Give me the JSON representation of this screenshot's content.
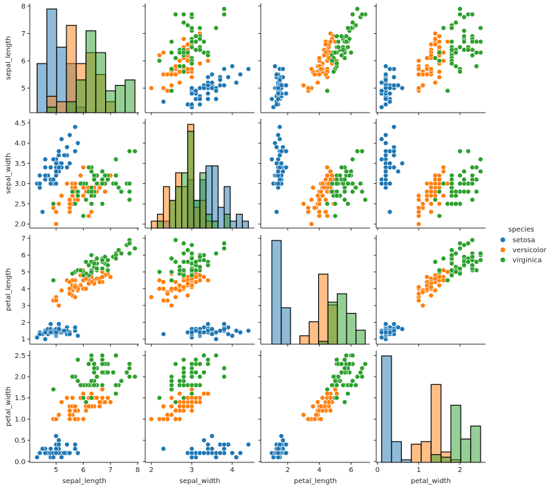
{
  "chart_data": {
    "type": "scatter",
    "title": "",
    "kind": "pairplot",
    "variables": [
      "sepal_length",
      "sepal_width",
      "petal_length",
      "petal_width"
    ],
    "hue": "species",
    "legend": {
      "title": "species",
      "position": "right",
      "entries": [
        {
          "label": "setosa",
          "color": "#1f77b4"
        },
        {
          "label": "versicolor",
          "color": "#ff7f0e"
        },
        {
          "label": "virginica",
          "color": "#2ca02c"
        }
      ]
    },
    "diag_kind": "hist",
    "axes": {
      "sepal_length": {
        "range": [
          4.1,
          8.1
        ],
        "ticks": [
          5,
          6,
          7,
          8
        ],
        "tick_labels": [
          "5",
          "6",
          "7",
          "8"
        ]
      },
      "sepal_width": {
        "range": [
          1.85,
          4.5
        ],
        "ticks": [
          2.0,
          2.5,
          3.0,
          3.5,
          4.0,
          4.5
        ],
        "tick_labels": [
          "2.0",
          "2.5",
          "3.0",
          "3.5",
          "4.0",
          "4.5"
        ],
        "x_ticks": [
          2,
          3,
          4
        ],
        "x_tick_labels": [
          "2",
          "3",
          "4"
        ]
      },
      "petal_length": {
        "range": [
          0.7,
          7.2
        ],
        "ticks": [
          1,
          2,
          3,
          4,
          5,
          6,
          7
        ],
        "tick_labels": [
          "1",
          "2",
          "3",
          "4",
          "5",
          "6",
          "7"
        ],
        "x_ticks": [
          2,
          4,
          6
        ],
        "x_tick_labels": [
          "2",
          "4",
          "6"
        ]
      },
      "petal_width": {
        "range": [
          0.0,
          2.6
        ],
        "ticks": [
          0.0,
          0.5,
          1.0,
          1.5,
          2.0,
          2.5
        ],
        "tick_labels": [
          "0.0",
          "0.5",
          "1.0",
          "1.5",
          "2.0",
          "2.5"
        ],
        "x_ticks": [
          0,
          1,
          2
        ],
        "x_tick_labels": [
          "0",
          "1",
          "2"
        ]
      }
    },
    "data": {
      "setosa": [
        [
          5.1,
          3.5,
          1.4,
          0.2
        ],
        [
          4.9,
          3.0,
          1.4,
          0.2
        ],
        [
          4.7,
          3.2,
          1.3,
          0.2
        ],
        [
          4.6,
          3.1,
          1.5,
          0.2
        ],
        [
          5.0,
          3.6,
          1.4,
          0.2
        ],
        [
          5.4,
          3.9,
          1.7,
          0.4
        ],
        [
          4.6,
          3.4,
          1.4,
          0.3
        ],
        [
          5.0,
          3.4,
          1.5,
          0.2
        ],
        [
          4.4,
          2.9,
          1.4,
          0.2
        ],
        [
          4.9,
          3.1,
          1.5,
          0.1
        ],
        [
          5.4,
          3.7,
          1.5,
          0.2
        ],
        [
          4.8,
          3.4,
          1.6,
          0.2
        ],
        [
          4.8,
          3.0,
          1.4,
          0.1
        ],
        [
          4.3,
          3.0,
          1.1,
          0.1
        ],
        [
          5.8,
          4.0,
          1.2,
          0.2
        ],
        [
          5.7,
          4.4,
          1.5,
          0.4
        ],
        [
          5.4,
          3.9,
          1.3,
          0.4
        ],
        [
          5.1,
          3.5,
          1.4,
          0.3
        ],
        [
          5.7,
          3.8,
          1.7,
          0.3
        ],
        [
          5.1,
          3.8,
          1.5,
          0.3
        ],
        [
          5.4,
          3.4,
          1.7,
          0.2
        ],
        [
          5.1,
          3.7,
          1.5,
          0.4
        ],
        [
          4.6,
          3.6,
          1.0,
          0.2
        ],
        [
          5.1,
          3.3,
          1.7,
          0.5
        ],
        [
          4.8,
          3.4,
          1.9,
          0.2
        ],
        [
          5.0,
          3.0,
          1.6,
          0.2
        ],
        [
          5.0,
          3.4,
          1.6,
          0.4
        ],
        [
          5.2,
          3.5,
          1.5,
          0.2
        ],
        [
          5.2,
          3.4,
          1.4,
          0.2
        ],
        [
          4.7,
          3.2,
          1.6,
          0.2
        ],
        [
          4.8,
          3.1,
          1.6,
          0.2
        ],
        [
          5.4,
          3.4,
          1.5,
          0.4
        ],
        [
          5.2,
          4.1,
          1.5,
          0.1
        ],
        [
          5.5,
          4.2,
          1.4,
          0.2
        ],
        [
          4.9,
          3.1,
          1.5,
          0.2
        ],
        [
          5.0,
          3.2,
          1.2,
          0.2
        ],
        [
          5.5,
          3.5,
          1.3,
          0.2
        ],
        [
          4.9,
          3.6,
          1.4,
          0.1
        ],
        [
          4.4,
          3.0,
          1.3,
          0.2
        ],
        [
          5.1,
          3.4,
          1.5,
          0.2
        ],
        [
          5.0,
          3.5,
          1.3,
          0.3
        ],
        [
          4.5,
          2.3,
          1.3,
          0.3
        ],
        [
          4.4,
          3.2,
          1.3,
          0.2
        ],
        [
          5.0,
          3.5,
          1.6,
          0.6
        ],
        [
          5.1,
          3.8,
          1.9,
          0.4
        ],
        [
          4.8,
          3.0,
          1.4,
          0.3
        ],
        [
          5.1,
          3.8,
          1.6,
          0.2
        ],
        [
          4.6,
          3.2,
          1.4,
          0.2
        ],
        [
          5.3,
          3.7,
          1.5,
          0.2
        ],
        [
          5.0,
          3.3,
          1.4,
          0.2
        ]
      ],
      "versicolor": [
        [
          7.0,
          3.2,
          4.7,
          1.4
        ],
        [
          6.4,
          3.2,
          4.5,
          1.5
        ],
        [
          6.9,
          3.1,
          4.9,
          1.5
        ],
        [
          5.5,
          2.3,
          4.0,
          1.3
        ],
        [
          6.5,
          2.8,
          4.6,
          1.5
        ],
        [
          5.7,
          2.8,
          4.5,
          1.3
        ],
        [
          6.3,
          3.3,
          4.7,
          1.6
        ],
        [
          4.9,
          2.4,
          3.3,
          1.0
        ],
        [
          6.6,
          2.9,
          4.6,
          1.3
        ],
        [
          5.2,
          2.7,
          3.9,
          1.4
        ],
        [
          5.0,
          2.0,
          3.5,
          1.0
        ],
        [
          5.9,
          3.0,
          4.2,
          1.5
        ],
        [
          6.0,
          2.2,
          4.0,
          1.0
        ],
        [
          6.1,
          2.9,
          4.7,
          1.4
        ],
        [
          5.6,
          2.9,
          3.6,
          1.3
        ],
        [
          6.7,
          3.1,
          4.4,
          1.4
        ],
        [
          5.6,
          3.0,
          4.5,
          1.5
        ],
        [
          5.8,
          2.7,
          4.1,
          1.0
        ],
        [
          6.2,
          2.2,
          4.5,
          1.5
        ],
        [
          5.6,
          2.5,
          3.9,
          1.1
        ],
        [
          5.9,
          3.2,
          4.8,
          1.8
        ],
        [
          6.1,
          2.8,
          4.0,
          1.3
        ],
        [
          6.3,
          2.5,
          4.9,
          1.5
        ],
        [
          6.1,
          2.8,
          4.7,
          1.2
        ],
        [
          6.4,
          2.9,
          4.3,
          1.3
        ],
        [
          6.6,
          3.0,
          4.4,
          1.4
        ],
        [
          6.8,
          2.8,
          4.8,
          1.4
        ],
        [
          6.7,
          3.0,
          5.0,
          1.7
        ],
        [
          6.0,
          2.9,
          4.5,
          1.5
        ],
        [
          5.7,
          2.6,
          3.5,
          1.0
        ],
        [
          5.5,
          2.4,
          3.8,
          1.1
        ],
        [
          5.5,
          2.4,
          3.7,
          1.0
        ],
        [
          5.8,
          2.7,
          3.9,
          1.2
        ],
        [
          6.0,
          2.7,
          5.1,
          1.6
        ],
        [
          5.4,
          3.0,
          4.5,
          1.5
        ],
        [
          6.0,
          3.4,
          4.5,
          1.6
        ],
        [
          6.7,
          3.1,
          4.7,
          1.5
        ],
        [
          6.3,
          2.3,
          4.4,
          1.3
        ],
        [
          5.6,
          3.0,
          4.1,
          1.3
        ],
        [
          5.5,
          2.5,
          4.0,
          1.3
        ],
        [
          5.5,
          2.6,
          4.4,
          1.2
        ],
        [
          6.1,
          3.0,
          4.6,
          1.4
        ],
        [
          5.8,
          2.6,
          4.0,
          1.2
        ],
        [
          5.0,
          2.3,
          3.3,
          1.0
        ],
        [
          5.6,
          2.7,
          4.2,
          1.3
        ],
        [
          5.7,
          3.0,
          4.2,
          1.2
        ],
        [
          5.7,
          2.9,
          4.2,
          1.3
        ],
        [
          6.2,
          2.9,
          4.3,
          1.3
        ],
        [
          5.1,
          2.5,
          3.0,
          1.1
        ],
        [
          5.7,
          2.8,
          4.1,
          1.3
        ]
      ],
      "virginica": [
        [
          6.3,
          3.3,
          6.0,
          2.5
        ],
        [
          5.8,
          2.7,
          5.1,
          1.9
        ],
        [
          7.1,
          3.0,
          5.9,
          2.1
        ],
        [
          6.3,
          2.9,
          5.6,
          1.8
        ],
        [
          6.5,
          3.0,
          5.8,
          2.2
        ],
        [
          7.6,
          3.0,
          6.6,
          2.1
        ],
        [
          4.9,
          2.5,
          4.5,
          1.7
        ],
        [
          7.3,
          2.9,
          6.3,
          1.8
        ],
        [
          6.7,
          2.5,
          5.8,
          1.8
        ],
        [
          7.2,
          3.6,
          6.1,
          2.5
        ],
        [
          6.5,
          3.2,
          5.1,
          2.0
        ],
        [
          6.4,
          2.7,
          5.3,
          1.9
        ],
        [
          6.8,
          3.0,
          5.5,
          2.1
        ],
        [
          5.7,
          2.5,
          5.0,
          2.0
        ],
        [
          5.8,
          2.8,
          5.1,
          2.4
        ],
        [
          6.4,
          3.2,
          5.3,
          2.3
        ],
        [
          6.5,
          3.0,
          5.5,
          1.8
        ],
        [
          7.7,
          3.8,
          6.7,
          2.2
        ],
        [
          7.7,
          2.6,
          6.9,
          2.3
        ],
        [
          6.0,
          2.2,
          5.0,
          1.5
        ],
        [
          6.9,
          3.2,
          5.7,
          2.3
        ],
        [
          5.6,
          2.8,
          4.9,
          2.0
        ],
        [
          7.7,
          2.8,
          6.7,
          2.0
        ],
        [
          6.3,
          2.7,
          4.9,
          1.8
        ],
        [
          6.7,
          3.3,
          5.7,
          2.1
        ],
        [
          7.2,
          3.2,
          6.0,
          1.8
        ],
        [
          6.2,
          2.8,
          4.8,
          1.8
        ],
        [
          6.1,
          3.0,
          4.9,
          1.8
        ],
        [
          6.4,
          2.8,
          5.6,
          2.1
        ],
        [
          7.2,
          3.0,
          5.8,
          1.6
        ],
        [
          7.4,
          2.8,
          6.1,
          1.9
        ],
        [
          7.9,
          3.8,
          6.4,
          2.0
        ],
        [
          6.4,
          2.8,
          5.6,
          2.2
        ],
        [
          6.3,
          2.8,
          5.1,
          1.5
        ],
        [
          6.1,
          2.6,
          5.6,
          1.4
        ],
        [
          7.7,
          3.0,
          6.1,
          2.3
        ],
        [
          6.3,
          3.4,
          5.6,
          2.4
        ],
        [
          6.4,
          3.1,
          5.5,
          1.8
        ],
        [
          6.0,
          3.0,
          4.8,
          1.8
        ],
        [
          6.9,
          3.1,
          5.4,
          2.1
        ],
        [
          6.7,
          3.1,
          5.6,
          2.4
        ],
        [
          6.9,
          3.1,
          5.1,
          2.3
        ],
        [
          5.8,
          2.7,
          5.1,
          1.9
        ],
        [
          6.8,
          3.2,
          5.9,
          2.3
        ],
        [
          6.7,
          3.3,
          5.7,
          2.5
        ],
        [
          6.7,
          3.0,
          5.2,
          2.3
        ],
        [
          6.3,
          2.5,
          5.0,
          1.9
        ],
        [
          6.5,
          3.0,
          5.2,
          2.0
        ],
        [
          6.2,
          3.4,
          5.4,
          2.3
        ],
        [
          5.9,
          3.0,
          5.1,
          1.8
        ]
      ]
    },
    "hist_bins": {
      "sepal_length": [
        4.3,
        4.66,
        5.02,
        5.38,
        5.74,
        6.1,
        6.46,
        6.82,
        7.18,
        7.54,
        7.9
      ],
      "sepal_width": [
        2.0,
        2.15,
        2.3,
        2.45,
        2.6,
        2.75,
        2.9,
        3.05,
        3.2,
        3.35,
        3.5,
        3.65,
        3.8,
        3.95,
        4.1,
        4.25,
        4.4
      ],
      "petal_length": [
        1.0,
        1.59,
        2.18,
        2.77,
        3.36,
        3.95,
        4.54,
        5.13,
        5.72,
        6.31,
        6.9
      ],
      "petal_width": [
        0.1,
        0.34,
        0.58,
        0.82,
        1.06,
        1.3,
        1.54,
        1.78,
        2.02,
        2.26,
        2.5
      ]
    }
  }
}
